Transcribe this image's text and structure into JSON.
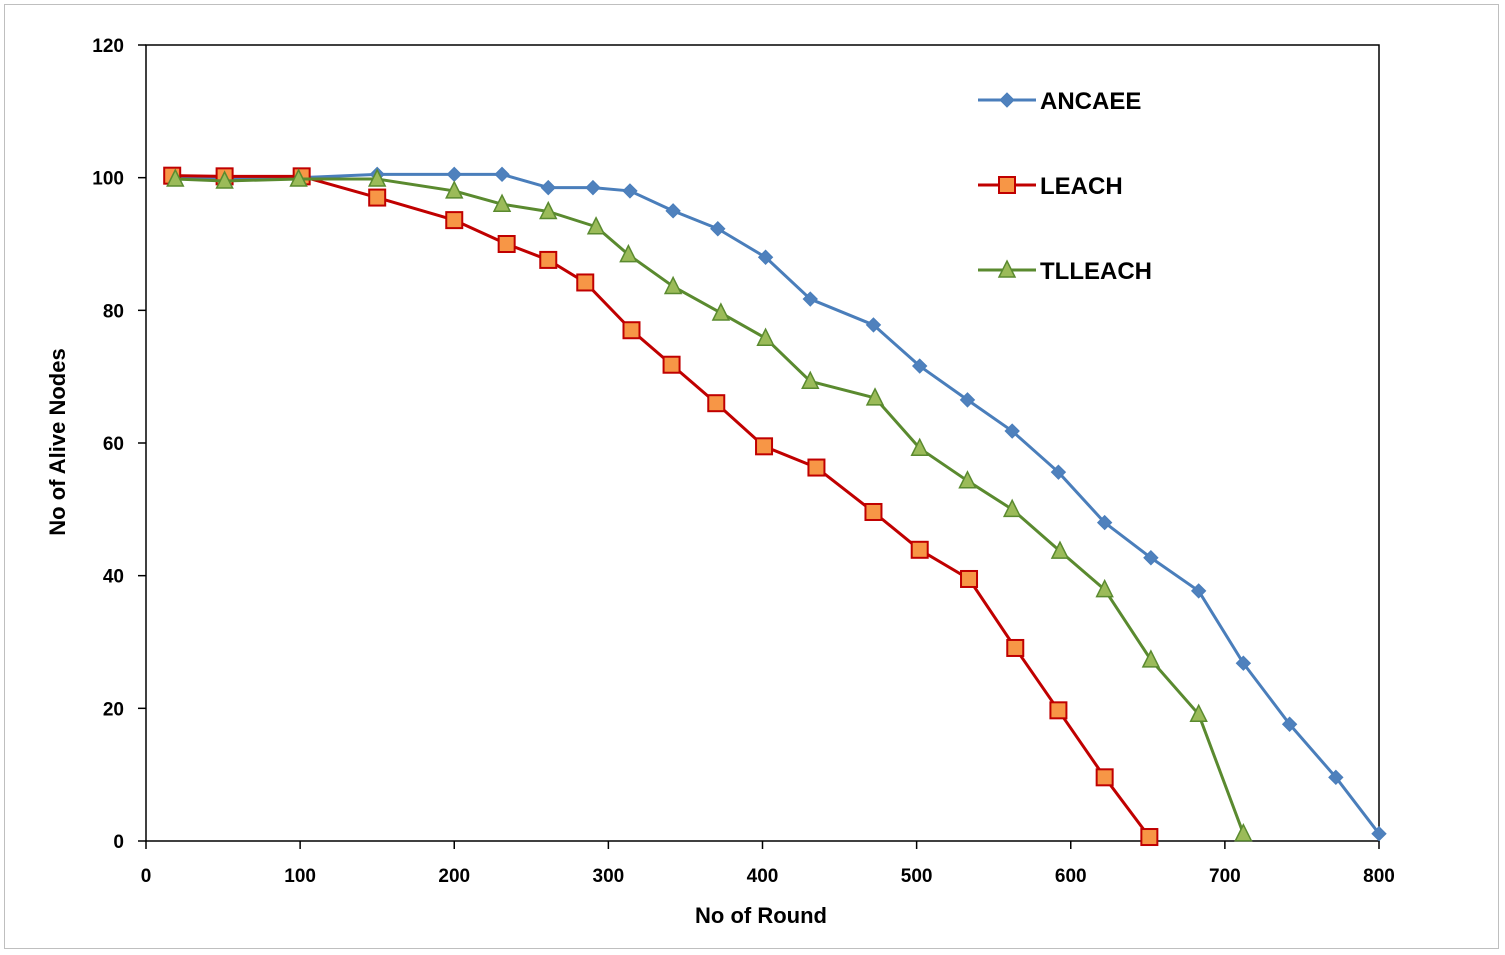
{
  "chart_data": {
    "type": "line",
    "title": "",
    "xlabel": "No of Round",
    "ylabel": "No of Alive Nodes",
    "xlim": [
      0,
      800
    ],
    "ylim": [
      0,
      120
    ],
    "xticks": [
      0,
      100,
      200,
      300,
      400,
      500,
      600,
      700,
      800
    ],
    "yticks": [
      0,
      20,
      40,
      60,
      80,
      100,
      120
    ],
    "grid": false,
    "legend_position": "top-right",
    "series": [
      {
        "name": "ANCAEE",
        "color": "#4a7ebb",
        "marker_fill": "#4f81bd",
        "marker": "diamond",
        "x": [
          20,
          52,
          101,
          150,
          200,
          231,
          261,
          290,
          314,
          342,
          371,
          402,
          431,
          472,
          502,
          533,
          562,
          592,
          622,
          652,
          683,
          712,
          742,
          772,
          800
        ],
        "y": [
          100,
          99.8,
          100,
          100.5,
          100.5,
          100.5,
          98.5,
          98.5,
          98,
          95,
          92.3,
          88,
          81.7,
          77.8,
          71.6,
          66.5,
          61.8,
          55.6,
          48,
          42.7,
          37.7,
          26.8,
          17.6,
          9.6,
          1.1
        ]
      },
      {
        "name": "LEACH",
        "color": "#c00000",
        "marker_fill": "#f79646",
        "marker": "square",
        "x": [
          17,
          51,
          101,
          150,
          200,
          234,
          261,
          285,
          315,
          341,
          370,
          401,
          435,
          472,
          502,
          534,
          564,
          592,
          622,
          651
        ],
        "y": [
          100.3,
          100.2,
          100.2,
          97,
          93.6,
          90,
          87.6,
          84.2,
          77,
          71.8,
          66,
          59.5,
          56.3,
          49.6,
          43.9,
          39.5,
          29.1,
          19.7,
          9.6,
          0.6
        ]
      },
      {
        "name": "TLLEACH",
        "color": "#5a8a2f",
        "marker_fill": "#9bbb59",
        "marker": "triangle",
        "x": [
          19,
          51,
          99,
          150,
          200,
          231,
          261,
          292,
          313,
          342,
          373,
          402,
          431,
          473,
          502,
          533,
          562,
          593,
          622,
          652,
          683,
          712
        ],
        "y": [
          99.8,
          99.5,
          99.8,
          99.8,
          98,
          96,
          94.9,
          92.6,
          88.4,
          83.6,
          79.6,
          75.8,
          69.3,
          66.8,
          59.2,
          54.3,
          50,
          43.7,
          37.9,
          27.3,
          19.1,
          1.1
        ]
      }
    ]
  }
}
